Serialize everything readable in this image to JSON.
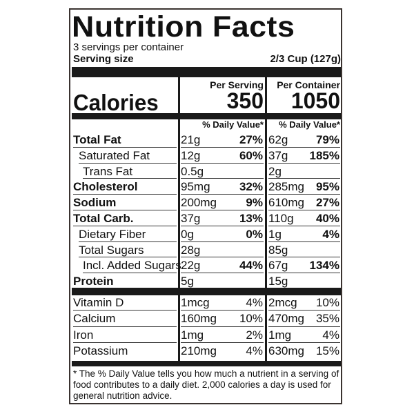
{
  "title": "Nutrition Facts",
  "servings": "3 servings per container",
  "serving_size_label": "Serving size",
  "serving_size": "2/3 Cup (127g)",
  "calories_label": "Calories",
  "columns": [
    {
      "header": "Per Serving",
      "calories": "350",
      "dv_header": "% Daily Value*"
    },
    {
      "header": "Per Container",
      "calories": "1050",
      "dv_header": "% Daily Value*"
    }
  ],
  "nutrients": [
    {
      "name": "Total Fat",
      "per_serving": [
        "21g",
        "27%"
      ],
      "per_container": [
        "62g",
        "79%"
      ]
    },
    {
      "name": "Saturated Fat",
      "per_serving": [
        "12g",
        "60%"
      ],
      "per_container": [
        "37g",
        "185%"
      ]
    },
    {
      "name": "Trans Fat",
      "per_serving": [
        "0.5g"
      ],
      "per_container": [
        "2g"
      ]
    },
    {
      "name": "Cholesterol",
      "per_serving": [
        "95mg",
        "32%"
      ],
      "per_container": [
        "285mg",
        "95%"
      ]
    },
    {
      "name": "Sodium",
      "per_serving": [
        "200mg",
        "9%"
      ],
      "per_container": [
        "610mg",
        "27%"
      ]
    },
    {
      "name": "Total Carb.",
      "per_serving": [
        "37g",
        "13%"
      ],
      "per_container": [
        "110g",
        "40%"
      ]
    },
    {
      "name": "Dietary Fiber",
      "per_serving": [
        "0g",
        "0%"
      ],
      "per_container": [
        "1g",
        "4%"
      ]
    },
    {
      "name": "Total Sugars",
      "per_serving": [
        "28g"
      ],
      "per_container": [
        "85g"
      ]
    },
    {
      "name": "Incl. Added Sugars",
      "per_serving": [
        "22g",
        "44%"
      ],
      "per_container": [
        "67g",
        "134%"
      ]
    },
    {
      "name": "Protein",
      "per_serving": [
        "5g"
      ],
      "per_container": [
        "15g"
      ]
    }
  ],
  "vitamins": [
    {
      "name": "Vitamin D",
      "per_serving": [
        "1mcg",
        "4%"
      ],
      "per_container": [
        "2mcg",
        "10%"
      ]
    },
    {
      "name": "Calcium",
      "per_serving": [
        "160mg",
        "10%"
      ],
      "per_container": [
        "470mg",
        "35%"
      ]
    },
    {
      "name": "Iron",
      "per_serving": [
        "1mg",
        "2%"
      ],
      "per_container": [
        "1mg",
        "4%"
      ]
    },
    {
      "name": "Potassium",
      "per_serving": [
        "210mg",
        "4%"
      ],
      "per_container": [
        "630mg",
        "15%"
      ]
    }
  ],
  "footnote": "* The % Daily Value tells you how much a nutrient in a serving of food contributes to a daily diet. 2,000 calories a day is used for general nutrition advice."
}
